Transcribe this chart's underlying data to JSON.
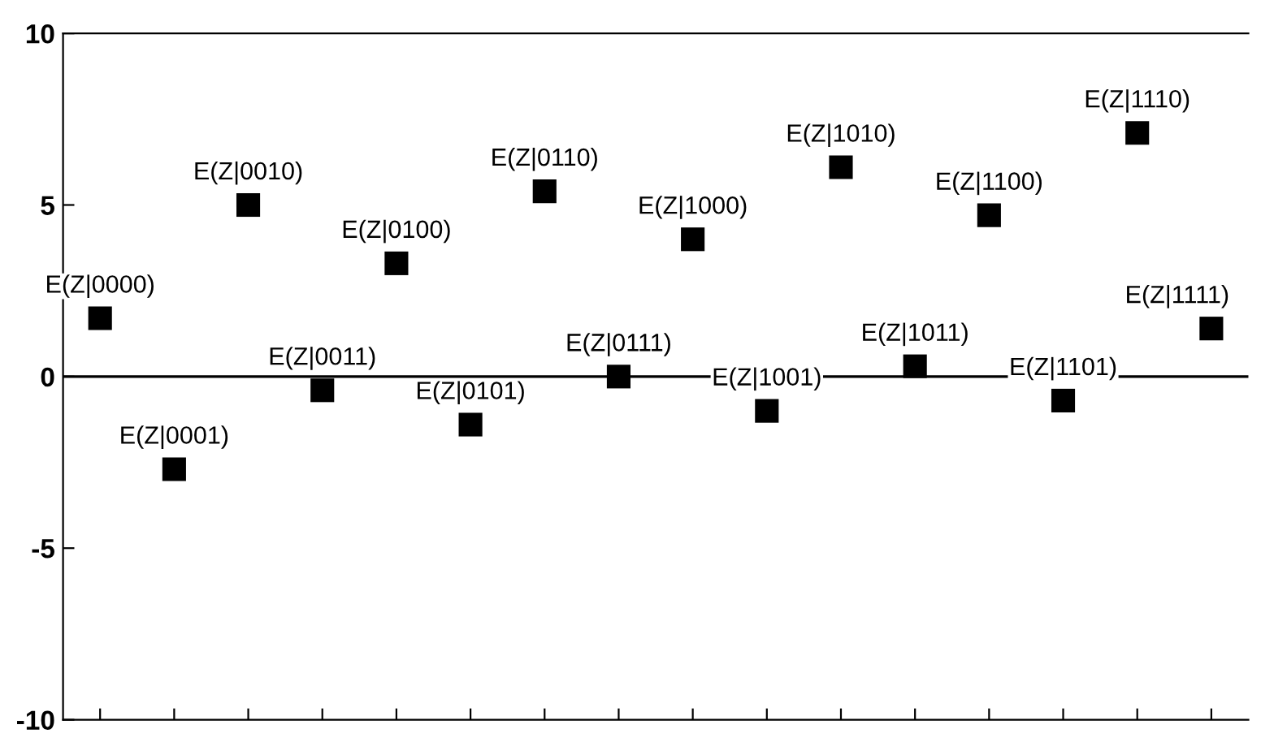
{
  "chart_data": {
    "type": "scatter",
    "categories": [
      null,
      null,
      null,
      null,
      null,
      null,
      null,
      null,
      null,
      null,
      null,
      null,
      null,
      null,
      null,
      null
    ],
    "series": [
      {
        "name": "E(Z|0000)",
        "color": "#000000",
        "values": [
          1.7,
          null,
          null,
          null,
          null,
          null,
          null,
          null,
          null,
          null,
          null,
          null,
          null,
          null,
          null,
          null
        ]
      },
      {
        "name": "E(Z|0001)",
        "color": "#000000",
        "values": [
          null,
          -2.7,
          null,
          null,
          null,
          null,
          null,
          null,
          null,
          null,
          null,
          null,
          null,
          null,
          null,
          null
        ]
      },
      {
        "name": "E(Z|0010)",
        "color": "#000000",
        "values": [
          null,
          null,
          5.0,
          null,
          null,
          null,
          null,
          null,
          null,
          null,
          null,
          null,
          null,
          null,
          null,
          null
        ]
      },
      {
        "name": "E(Z|0011)",
        "color": "#000000",
        "values": [
          null,
          null,
          null,
          -0.4,
          null,
          null,
          null,
          null,
          null,
          null,
          null,
          null,
          null,
          null,
          null,
          null
        ]
      },
      {
        "name": "E(Z|0100)",
        "color": "#000000",
        "values": [
          null,
          null,
          null,
          null,
          3.3,
          null,
          null,
          null,
          null,
          null,
          null,
          null,
          null,
          null,
          null,
          null
        ]
      },
      {
        "name": "E(Z|0101)",
        "color": "#000000",
        "values": [
          null,
          null,
          null,
          null,
          null,
          -1.4,
          null,
          null,
          null,
          null,
          null,
          null,
          null,
          null,
          null,
          null
        ]
      },
      {
        "name": "E(Z|0110)",
        "color": "#000000",
        "values": [
          null,
          null,
          null,
          null,
          null,
          null,
          5.4,
          null,
          null,
          null,
          null,
          null,
          null,
          null,
          null,
          null
        ]
      },
      {
        "name": "E(Z|0111)",
        "color": "#000000",
        "values": [
          null,
          null,
          null,
          null,
          null,
          null,
          null,
          0.0,
          null,
          null,
          null,
          null,
          null,
          null,
          null,
          null
        ]
      },
      {
        "name": "E(Z|1000)",
        "color": "#000000",
        "values": [
          null,
          null,
          null,
          null,
          null,
          null,
          null,
          null,
          4.0,
          null,
          null,
          null,
          null,
          null,
          null,
          null
        ]
      },
      {
        "name": "E(Z|1001)",
        "color": "#000000",
        "values": [
          null,
          null,
          null,
          null,
          null,
          null,
          null,
          null,
          null,
          -1.0,
          null,
          null,
          null,
          null,
          null,
          null
        ]
      },
      {
        "name": "E(Z|1010)",
        "color": "#000000",
        "values": [
          null,
          null,
          null,
          null,
          null,
          null,
          null,
          null,
          null,
          null,
          6.1,
          null,
          null,
          null,
          null,
          null
        ]
      },
      {
        "name": "E(Z|1011)",
        "color": "#000000",
        "values": [
          null,
          null,
          null,
          null,
          null,
          null,
          null,
          null,
          null,
          null,
          null,
          0.3,
          null,
          null,
          null,
          null
        ]
      },
      {
        "name": "E(Z|1100)",
        "color": "#000000",
        "values": [
          null,
          null,
          null,
          null,
          null,
          null,
          null,
          null,
          null,
          null,
          null,
          null,
          4.7,
          null,
          null,
          null
        ]
      },
      {
        "name": "E(Z|1101)",
        "color": "#000000",
        "values": [
          null,
          null,
          null,
          null,
          null,
          null,
          null,
          null,
          null,
          null,
          null,
          null,
          null,
          -0.7,
          null,
          null
        ]
      },
      {
        "name": "E(Z|1110)",
        "color": "#000000",
        "values": [
          null,
          null,
          null,
          null,
          null,
          null,
          null,
          null,
          null,
          null,
          null,
          null,
          null,
          null,
          7.1,
          null
        ]
      },
      {
        "name": "E(Z|1111)",
        "color": "#000000",
        "values": [
          null,
          null,
          null,
          null,
          null,
          null,
          null,
          null,
          null,
          null,
          null,
          null,
          null,
          null,
          null,
          1.4
        ]
      }
    ],
    "marker": "square",
    "ylim": [
      -10,
      10
    ],
    "yticks": [
      -10,
      -5,
      0,
      5,
      10
    ],
    "ref_lines": [
      {
        "axis": "y",
        "value": 0,
        "color": "#000000"
      }
    ],
    "tick_labels": "y"
  }
}
